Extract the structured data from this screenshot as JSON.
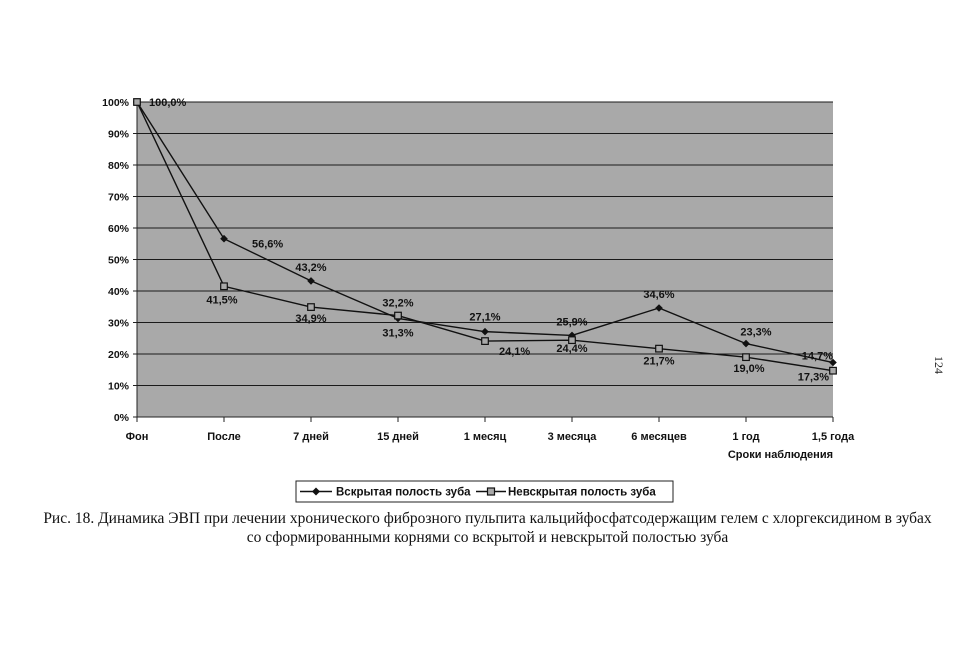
{
  "chart_data": {
    "type": "line",
    "categories": [
      "Фон",
      "После",
      "7 дней",
      "15 дней",
      "1 месяц",
      "3 месяца",
      "6 месяцев",
      "1 год",
      "1,5 года"
    ],
    "series": [
      {
        "name": "Вскрытая полость зуба",
        "values": [
          100.0,
          56.6,
          43.2,
          31.3,
          27.1,
          25.9,
          34.6,
          23.3,
          17.3
        ],
        "labels": [
          "100,0%",
          "56,6%",
          "43,2%",
          "31,3%",
          "27,1%",
          "25,9%",
          "34,6%",
          "23,3%",
          "17,3%"
        ],
        "marker": "diamond",
        "color": "#111111"
      },
      {
        "name": "Невскрытая полость зуба",
        "values": [
          100.0,
          41.5,
          34.9,
          32.2,
          24.1,
          24.4,
          21.7,
          19.0,
          14.7
        ],
        "labels": [
          "",
          "41,5%",
          "34,9%",
          "32,2%",
          "24,1%",
          "24,4%",
          "21,7%",
          "19,0%",
          "14,7%"
        ],
        "marker": "square",
        "color": "#111111"
      }
    ],
    "y_ticks": [
      "0%",
      "10%",
      "20%",
      "30%",
      "40%",
      "50%",
      "60%",
      "70%",
      "80%",
      "90%",
      "100%"
    ],
    "ylim": [
      0,
      100
    ],
    "xlabel": "Сроки наблюдения",
    "ylabel": "",
    "grid": true,
    "plot_background": "#a9a9a9",
    "legend_position": "bottom"
  },
  "caption": "Рис. 18. Динамика ЭВП при лечении хронического фиброзного пульпита кальцийфосфатсодержащим гелем с хлоргексидином в зубах со сформированными корнями со вскрытой и невскрытой полостью зуба",
  "page_number": "124"
}
